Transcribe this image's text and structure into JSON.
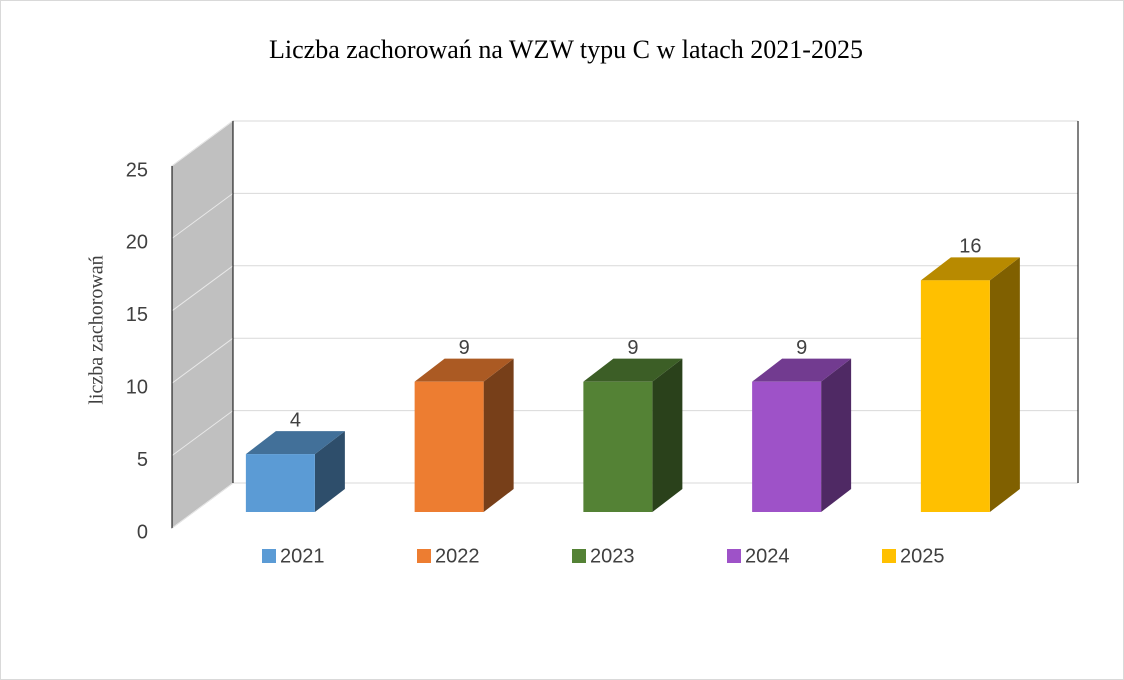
{
  "chart_data": {
    "type": "bar3d",
    "title": "Liczba zachorowań na WZW typu C w latach 2021-2025",
    "y_label": "liczba zachorowań",
    "categories": [
      null
    ],
    "series": [
      {
        "name": "2021",
        "color": "#5b9bd5",
        "values": [
          4
        ]
      },
      {
        "name": "2022",
        "color": "#ed7d31",
        "values": [
          9
        ]
      },
      {
        "name": "2023",
        "color": "#548235",
        "values": [
          9
        ]
      },
      {
        "name": "2024",
        "color": "#9e52c8",
        "values": [
          9
        ]
      },
      {
        "name": "2025",
        "color": "#ffc000",
        "values": [
          16
        ]
      }
    ],
    "ylim": [
      0,
      25
    ],
    "yticks": [
      0,
      5,
      10,
      15,
      20,
      25
    ],
    "grid": true,
    "legend": "bottom"
  }
}
